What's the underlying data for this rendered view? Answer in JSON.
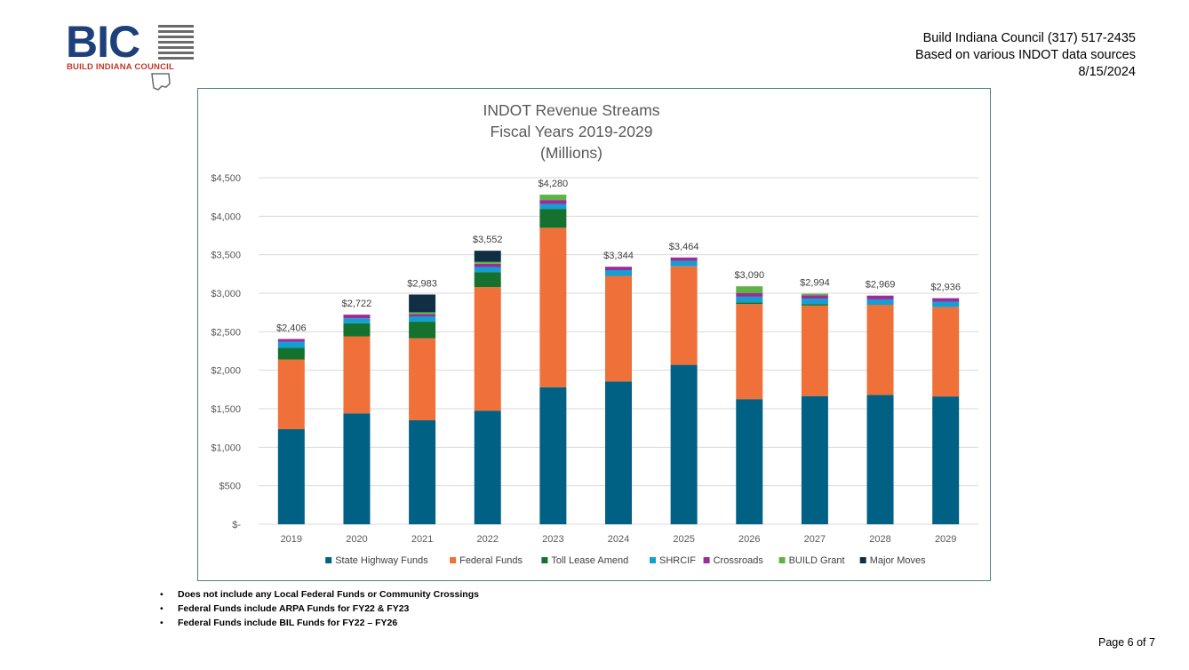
{
  "logo": {
    "letters": "BIC",
    "subtitle": "BUILD INDIANA COUNCIL",
    "icon": "indiana-map-icon"
  },
  "header": {
    "line1": "Build Indiana Council (317) 517-2435",
    "line2": "Based on various INDOT data sources",
    "line3": "8/15/2024"
  },
  "chart_data": {
    "type": "bar",
    "stacked": true,
    "title": [
      "INDOT Revenue Streams",
      "Fiscal Years 2019-2029",
      "(Millions)"
    ],
    "categories": [
      "2019",
      "2020",
      "2021",
      "2022",
      "2023",
      "2024",
      "2025",
      "2026",
      "2027",
      "2028",
      "2029"
    ],
    "totals": [
      "$2,406",
      "$2,722",
      "$2,983",
      "$3,552",
      "$4,280",
      "$3,344",
      "$3,464",
      "$3,090",
      "$2,994",
      "$2,969",
      "$2,936"
    ],
    "ylim": [
      0,
      4500
    ],
    "yticks": [
      0,
      500,
      1000,
      1500,
      2000,
      2500,
      3000,
      3500,
      4000,
      4500
    ],
    "ytick_labels": [
      "$-",
      "$500",
      "$1,000",
      "$1,500",
      "$2,000",
      "$2,500",
      "$3,000",
      "$3,500",
      "$4,000",
      "$4,500"
    ],
    "grid": true,
    "legend_position": "bottom",
    "series": [
      {
        "name": "State Highway Funds",
        "color": "#006184",
        "values": [
          1235,
          1440,
          1350,
          1475,
          1780,
          1855,
          2070,
          1625,
          1665,
          1680,
          1660
        ]
      },
      {
        "name": "Federal Funds",
        "color": "#ef7139",
        "values": [
          905,
          1000,
          1065,
          1605,
          2070,
          1370,
          1280,
          1235,
          1175,
          1170,
          1160
        ]
      },
      {
        "name": "Toll Lease Amend",
        "color": "#15712e",
        "values": [
          150,
          170,
          215,
          195,
          245,
          0,
          0,
          20,
          20,
          0,
          0
        ]
      },
      {
        "name": "SHRCIF",
        "color": "#149fd3",
        "values": [
          80,
          65,
          70,
          65,
          65,
          75,
          70,
          75,
          70,
          70,
          70
        ]
      },
      {
        "name": "Crossroads",
        "color": "#9b2c9b",
        "values": [
          36,
          47,
          28,
          42,
          50,
          44,
          44,
          45,
          44,
          49,
          46
        ]
      },
      {
        "name": "BUILD Grant",
        "color": "#5fb346",
        "values": [
          0,
          0,
          25,
          25,
          70,
          0,
          0,
          90,
          20,
          0,
          0
        ]
      },
      {
        "name": "Major Moves",
        "color": "#102f45",
        "values": [
          0,
          0,
          230,
          145,
          0,
          0,
          0,
          0,
          0,
          0,
          0
        ]
      }
    ]
  },
  "notes": [
    "Does not include any Local Federal Funds or Community Crossings",
    "Federal Funds include ARPA Funds for FY22 & FY23",
    "Federal Funds include BIL Funds for FY22 – FY26"
  ],
  "page": "Page 6 of 7"
}
